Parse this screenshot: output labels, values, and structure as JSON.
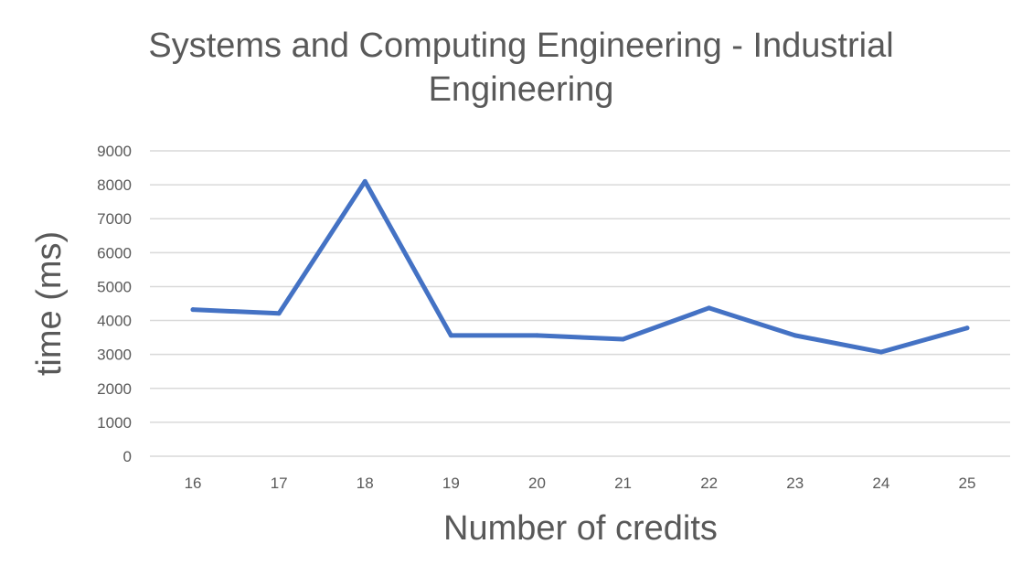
{
  "chart_data": {
    "type": "line",
    "title": "Systems and Computing Engineering - Industrial Engineering",
    "xlabel": "Number of credits",
    "ylabel": "time (ms)",
    "categories": [
      "16",
      "17",
      "18",
      "19",
      "20",
      "21",
      "22",
      "23",
      "24",
      "25"
    ],
    "series": [
      {
        "values": [
          4320,
          4210,
          8100,
          3560,
          3560,
          3450,
          4370,
          3560,
          3070,
          3780
        ]
      }
    ],
    "ylim": [
      0,
      9000
    ],
    "yticks": [
      "0",
      "1000",
      "2000",
      "3000",
      "4000",
      "5000",
      "6000",
      "7000",
      "8000",
      "9000"
    ],
    "grid": true,
    "legend": "none",
    "colors": {
      "line": "#4472C4",
      "grid": "#D9D9D9",
      "text": "#595959"
    }
  }
}
